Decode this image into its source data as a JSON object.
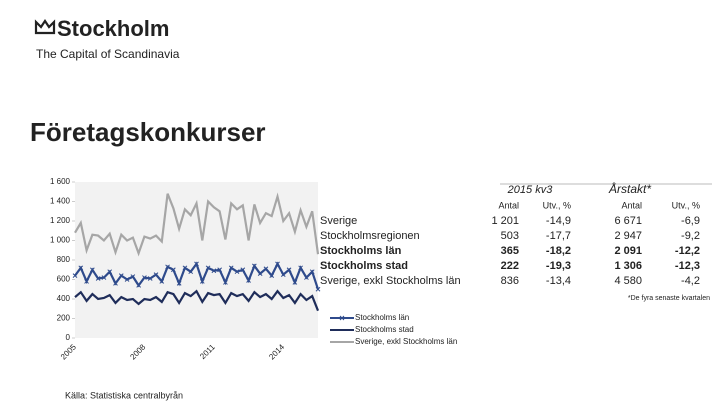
{
  "logo": {
    "name": "Stockholm",
    "tagline": "The Capital of Scandinavia"
  },
  "title": "Företagskonkurser",
  "chart_data": {
    "type": "line",
    "categories": [
      "2005",
      null,
      null,
      null,
      null,
      null,
      null,
      null,
      null,
      null,
      null,
      null,
      "2008",
      null,
      null,
      null,
      null,
      null,
      null,
      null,
      null,
      null,
      null,
      null,
      "2011",
      null,
      null,
      null,
      null,
      null,
      null,
      null,
      null,
      null,
      null,
      null,
      "2014",
      null,
      null,
      null,
      null,
      null,
      null
    ],
    "series": [
      {
        "name": "Stockholms län",
        "color": "#2f4b8c",
        "marker": "x",
        "values": [
          640,
          720,
          580,
          700,
          610,
          620,
          680,
          560,
          640,
          600,
          630,
          540,
          620,
          610,
          650,
          580,
          730,
          700,
          560,
          720,
          680,
          760,
          580,
          720,
          690,
          700,
          570,
          720,
          680,
          700,
          590,
          740,
          660,
          710,
          640,
          760,
          650,
          700,
          570,
          720,
          620,
          680,
          500
        ]
      },
      {
        "name": "Stockholms stad",
        "color": "#1f2d5a",
        "values": [
          420,
          470,
          380,
          450,
          400,
          410,
          440,
          360,
          420,
          390,
          400,
          350,
          400,
          390,
          420,
          370,
          470,
          450,
          360,
          460,
          430,
          480,
          370,
          460,
          440,
          450,
          360,
          460,
          430,
          450,
          380,
          470,
          420,
          450,
          400,
          480,
          410,
          440,
          360,
          450,
          390,
          430,
          280
        ]
      },
      {
        "name": "Sverige, exkl Stockholms län",
        "color": "#a6a6a6",
        "values": [
          1080,
          1180,
          900,
          1060,
          1050,
          1000,
          1070,
          880,
          1060,
          1000,
          1030,
          870,
          1040,
          1020,
          1050,
          990,
          1480,
          1330,
          1120,
          1320,
          1260,
          1380,
          1000,
          1400,
          1340,
          1300,
          1010,
          1380,
          1320,
          1360,
          1000,
          1370,
          1180,
          1280,
          1250,
          1450,
          1200,
          1280,
          1090,
          1310,
          1140,
          1300,
          860
        ]
      }
    ],
    "ylim": [
      0,
      1600
    ],
    "yticks": [
      0,
      200,
      400,
      600,
      800,
      {
        "value": 1000,
        "label": "1 000"
      },
      {
        "value": 1200,
        "label": "1 200"
      },
      {
        "value": 1400,
        "label": "1 400"
      },
      {
        "value": 1600,
        "label": "1 600"
      }
    ]
  },
  "table": {
    "groups": [
      "2015 kv3",
      "Årstakt*"
    ],
    "columns": [
      "Antal",
      "Utv., %",
      "Antal",
      "Utv., %"
    ],
    "rows": [
      {
        "label": "Sverige",
        "bold": false,
        "cells": [
          "1 201",
          "-14,9",
          "6 671",
          "-6,9"
        ]
      },
      {
        "label": "Stockholmsregionen",
        "bold": false,
        "cells": [
          "503",
          "-17,7",
          "2 947",
          "-9,2"
        ]
      },
      {
        "label": "Stockholms län",
        "bold": true,
        "cells": [
          "365",
          "-18,2",
          "2 091",
          "-12,2"
        ]
      },
      {
        "label": "Stockholms stad",
        "bold": true,
        "cells": [
          "222",
          "-19,3",
          "1 306",
          "-12,3"
        ]
      },
      {
        "label": "Sverige, exkl Stockholms län",
        "bold": false,
        "cells": [
          "836",
          "-13,4",
          "4 580",
          "-4,2"
        ]
      }
    ]
  },
  "footnote": "*De fyra senaste kvartalen",
  "source": "Källa: Statistiska centralbyrån"
}
